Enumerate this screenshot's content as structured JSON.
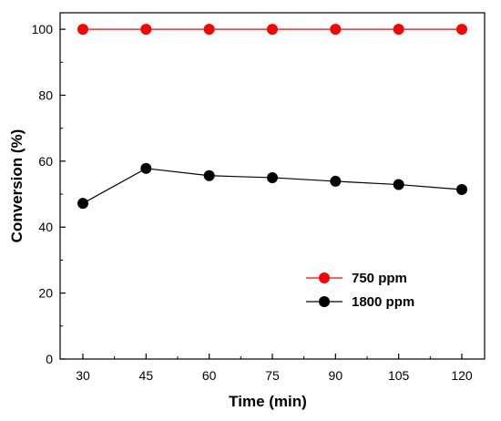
{
  "chart_data": {
    "type": "line",
    "title": "",
    "xlabel": "Time (min)",
    "ylabel": "Conversion (%)",
    "x": [
      30,
      45,
      60,
      75,
      90,
      105,
      120
    ],
    "x_tick_labels": [
      "30",
      "45",
      "60",
      "75",
      "90",
      "105",
      "120"
    ],
    "ylim": [
      0,
      105
    ],
    "y_ticks": [
      0,
      20,
      40,
      60,
      80,
      100
    ],
    "y_tick_labels": [
      "0",
      "20",
      "40",
      "60",
      "80",
      "100"
    ],
    "grid": false,
    "legend_position": "bottom-right",
    "series": [
      {
        "name": "750 ppm",
        "color": "#ff0000",
        "values": [
          100,
          100,
          100,
          100,
          100,
          100,
          100
        ]
      },
      {
        "name": "1800 ppm",
        "color": "#000000",
        "values": [
          47.2,
          57.8,
          55.6,
          55.0,
          53.9,
          52.9,
          51.4
        ]
      }
    ]
  }
}
